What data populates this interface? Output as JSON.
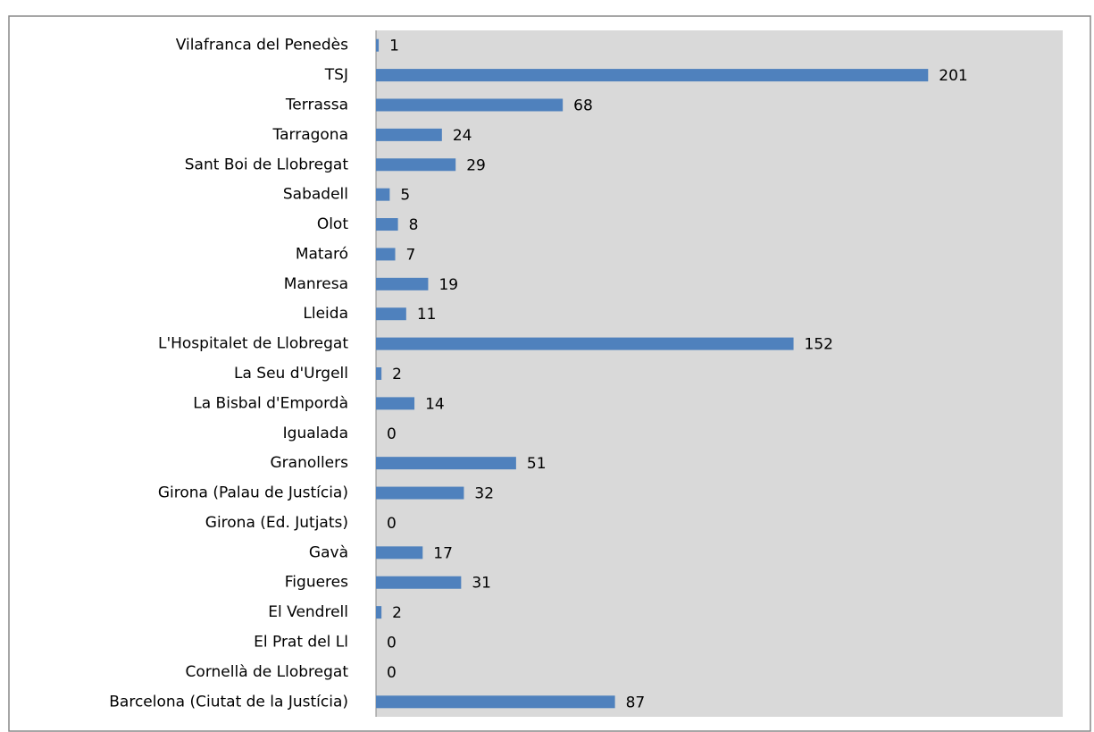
{
  "chart_data": {
    "type": "bar",
    "orientation": "horizontal",
    "categories": [
      "Vilafranca del Penedès",
      "TSJ",
      "Terrassa",
      "Tarragona",
      "Sant Boi de Llobregat",
      "Sabadell",
      "Olot",
      "Mataró",
      "Manresa",
      "Lleida",
      "L'Hospitalet de Llobregat",
      "La Seu d'Urgell",
      "La Bisbal d'Empordà",
      "Igualada",
      "Granollers",
      "Girona (Palau de Justícia)",
      "Girona (Ed. Jutjats)",
      "Gavà",
      "Figueres",
      "El Vendrell",
      "El Prat del Ll",
      "Cornellà de Llobregat",
      "Barcelona (Ciutat de la Justícia)"
    ],
    "values": [
      1,
      201,
      68,
      24,
      29,
      5,
      8,
      7,
      19,
      11,
      152,
      2,
      14,
      0,
      51,
      32,
      0,
      17,
      31,
      2,
      0,
      0,
      87
    ],
    "color": "#4f81bd",
    "xlim": [
      0,
      250
    ]
  }
}
